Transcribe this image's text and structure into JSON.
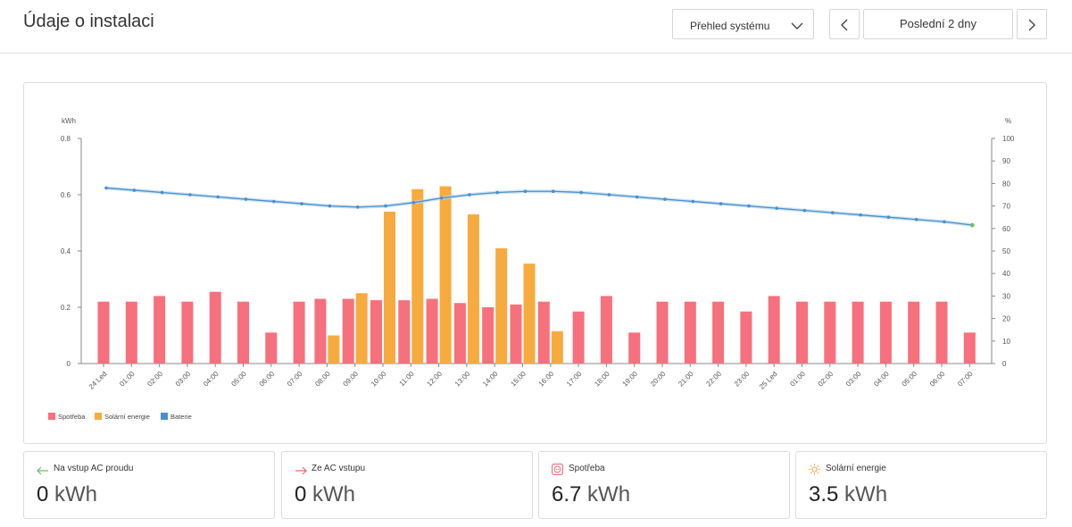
{
  "header": {
    "title": "Údaje o instalaci",
    "view_select": "Přehled systému",
    "range_label": "Poslední 2 dny"
  },
  "colors": {
    "consumption": "#f7707d",
    "solar": "#f7ab3e",
    "battery": "#4790d0",
    "battery_band": "#bcd7ee",
    "axis": "#888888",
    "battery_end_point": "#6abd6a"
  },
  "chart_data": {
    "type": "bar",
    "y_left_label": "kWh",
    "y_right_label": "%",
    "y_left_range": [
      0,
      0.8
    ],
    "y_left_ticks": [
      "0",
      "0.2",
      "0.4",
      "0.6",
      "0.8"
    ],
    "y_right_range": [
      0,
      100
    ],
    "y_right_ticks": [
      "0",
      "10",
      "20",
      "30",
      "40",
      "50",
      "60",
      "70",
      "80",
      "90",
      "100"
    ],
    "categories": [
      "24 Led",
      "01:00",
      "02:00",
      "03:00",
      "04:00",
      "05:00",
      "06:00",
      "07:00",
      "08:00",
      "09:00",
      "10:00",
      "11:00",
      "12:00",
      "13:00",
      "14:00",
      "15:00",
      "16:00",
      "17:00",
      "18:00",
      "19:00",
      "20:00",
      "21:00",
      "22:00",
      "23:00",
      "25 Led",
      "01:00",
      "02:00",
      "03:00",
      "04:00",
      "05:00",
      "06:00",
      "07:00"
    ],
    "grid": false,
    "legend_position": "bottom-left",
    "series": [
      {
        "name": "Spotřeba",
        "type": "bar",
        "axis": "left",
        "values": [
          0.22,
          0.22,
          0.24,
          0.22,
          0.255,
          0.22,
          0.11,
          0.22,
          0.23,
          0.23,
          0.225,
          0.225,
          0.23,
          0.215,
          0.2,
          0.21,
          0.22,
          0.185,
          0.24,
          0.11,
          0.22,
          0.22,
          0.22,
          0.185,
          0.24,
          0.22,
          0.22,
          0.22,
          0.22,
          0.22,
          0.22,
          0.11
        ]
      },
      {
        "name": "Solární energie",
        "type": "bar",
        "axis": "left",
        "values": [
          0,
          0,
          0,
          0,
          0,
          0,
          0,
          0,
          0.1,
          0.25,
          0.54,
          0.62,
          0.63,
          0.53,
          0.41,
          0.355,
          0.115,
          0,
          0,
          0,
          0,
          0,
          0,
          0,
          0,
          0,
          0,
          0,
          0,
          0,
          0,
          0
        ]
      },
      {
        "name": "Baterie",
        "type": "line",
        "axis": "right",
        "values": [
          78,
          77,
          76,
          75,
          74,
          73,
          72,
          71,
          70,
          69.5,
          70,
          71.5,
          73.5,
          75,
          76,
          76.5,
          76.5,
          76,
          75,
          74,
          73,
          72,
          71,
          70,
          69,
          68,
          67,
          66,
          65,
          64,
          63,
          61.5
        ]
      }
    ]
  },
  "stats": [
    {
      "label": "Na vstup AC proudu",
      "value": "0",
      "unit": "kWh",
      "icon": "arrow-left-icon",
      "icon_color": "#6abd6a"
    },
    {
      "label": "Ze AC vstupu",
      "value": "0",
      "unit": "kWh",
      "icon": "arrow-right-icon",
      "icon_color": "#e86b6b"
    },
    {
      "label": "Spotřeba",
      "value": "6.7",
      "unit": "kWh",
      "icon": "consumption-socket-icon",
      "icon_color": "#f26b7a"
    },
    {
      "label": "Solární energie",
      "value": "3.5",
      "unit": "kWh",
      "icon": "sun-icon",
      "icon_color": "#f4a63a"
    }
  ]
}
